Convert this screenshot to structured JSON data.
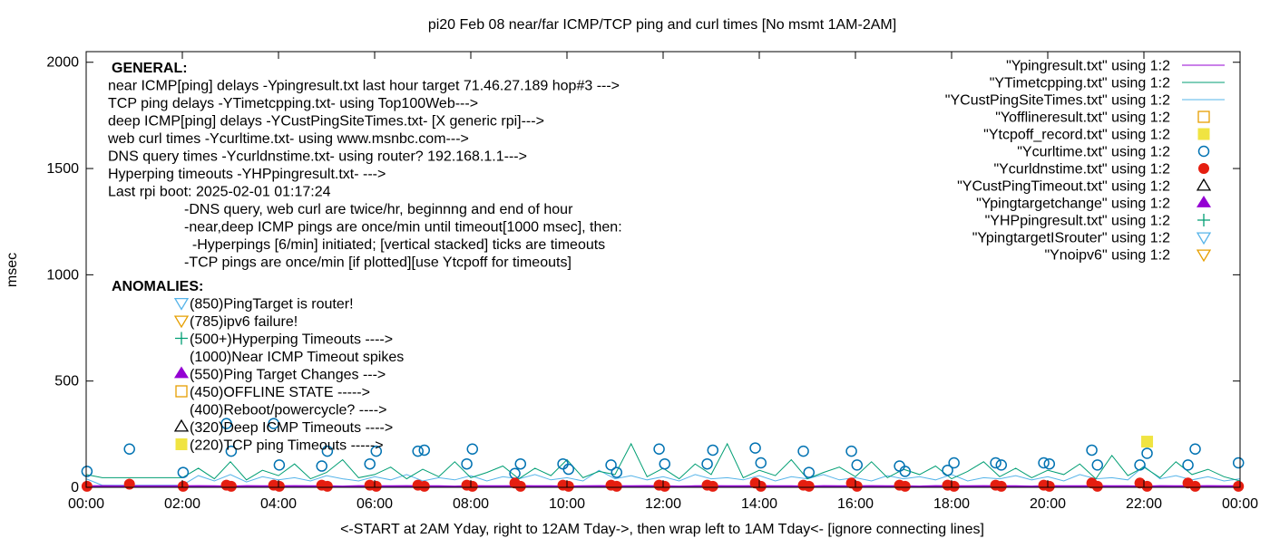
{
  "chart_data": {
    "type": "line",
    "title": "pi20 Feb 08  near/far ICMP/TCP ping and curl times [No msmt 1AM-2AM]",
    "xlabel": "<-START at 2AM Yday, right to 12AM Tday->, then wrap left to 1AM Tday<- [ignore connecting lines]",
    "ylabel": "msec",
    "xlim": [
      "00:00",
      "24:00"
    ],
    "ylim": [
      0,
      2050
    ],
    "x_ticks": [
      "00:00",
      "02:00",
      "04:00",
      "06:00",
      "08:00",
      "10:00",
      "12:00",
      "14:00",
      "16:00",
      "18:00",
      "20:00",
      "22:00",
      "00:00"
    ],
    "y_ticks": [
      0,
      500,
      1000,
      1500,
      2000
    ],
    "grid": false,
    "legend_position": "top-right",
    "colors": {
      "ypingresult": "#9400d3",
      "ytimetcpping": "#009e73",
      "ycustping": "#56b4e9",
      "yoffline": "#e69f00",
      "ytcpoff": "#f0e442",
      "ycurltime": "#0072b2",
      "ycurldns": "#e51e10",
      "ycustpingtimeout": "#000000",
      "ypingtargetchange": "#9400d3",
      "yhpping": "#009e73",
      "ypingtargetisrouter": "#56b4e9",
      "ynoipv6": "#e69f00"
    },
    "legend": [
      {
        "label": "\"Ypingresult.txt\" using 1:2",
        "kind": "line",
        "color": "#9400d3"
      },
      {
        "label": "\"YTimetcpping.txt\" using 1:2",
        "kind": "line",
        "color": "#009e73"
      },
      {
        "label": "\"YCustPingSiteTimes.txt\" using 1:2",
        "kind": "line",
        "color": "#56b4e9"
      },
      {
        "label": "\"Yofflineresult.txt\" using 1:2",
        "kind": "open-square",
        "color": "#e69f00"
      },
      {
        "label": "\"Ytcpoff_record.txt\" using 1:2",
        "kind": "filled-square",
        "color": "#f0e442"
      },
      {
        "label": "\"Ycurltime.txt\" using 1:2",
        "kind": "open-circle",
        "color": "#0072b2"
      },
      {
        "label": "\"Ycurldnstime.txt\" using 1:2",
        "kind": "filled-circle",
        "color": "#e51e10"
      },
      {
        "label": "\"YCustPingTimeout.txt\" using 1:2",
        "kind": "open-triangle",
        "color": "#000000"
      },
      {
        "label": "\"Ypingtargetchange\" using 1:2",
        "kind": "filled-triangle",
        "color": "#9400d3"
      },
      {
        "label": "\"YHPpingresult.txt\" using 1:2",
        "kind": "plus",
        "color": "#009e73"
      },
      {
        "label": "\"YpingtargetISrouter\" using 1:2",
        "kind": "open-triangle-down",
        "color": "#56b4e9"
      },
      {
        "label": "\"Ynoipv6\" using 1:2",
        "kind": "open-triangle-down",
        "color": "#e69f00"
      }
    ],
    "general_heading": "GENERAL:",
    "general_lines": [
      "near ICMP[ping] delays -Ypingresult.txt last hour target 71.46.27.189 hop#3 --->",
      "TCP ping delays -YTimetcpping.txt- using Top100Web--->",
      "deep ICMP[ping] delays -YCustPingSiteTimes.txt- [X generic rpi]--->",
      "web curl times -Ycurltime.txt- using www.msnbc.com--->",
      "DNS query times -Ycurldnstime.txt- using router? 192.168.1.1--->",
      "Hyperping timeouts -YHPpingresult.txt- --->",
      "Last rpi boot: 2025-02-01 01:17:24"
    ],
    "notes": [
      "-DNS query, web curl are twice/hr, beginnng and end of hour",
      "-near,deep ICMP pings are once/min until timeout[1000 msec], then:",
      "  -Hyperpings [6/min] initiated; [vertical stacked] ticks are timeouts",
      "-TCP pings are once/min [if plotted][use Ytcpoff for timeouts]"
    ],
    "anomalies_heading": "ANOMALIES:",
    "anomalies": [
      {
        "text": "(850)PingTarget is router!",
        "marker": "open-triangle-down",
        "color": "#56b4e9"
      },
      {
        "text": "(785)ipv6 failure!",
        "marker": "open-triangle-down",
        "color": "#e69f00"
      },
      {
        "text": "(500+)Hyperping Timeouts ---->",
        "marker": "plus",
        "color": "#009e73"
      },
      {
        "text": "(1000)Near ICMP Timeout spikes",
        "marker": "none",
        "color": ""
      },
      {
        "text": "(550)Ping Target Changes --->",
        "marker": "filled-triangle",
        "color": "#9400d3"
      },
      {
        "text": "(450)OFFLINE STATE ----->",
        "marker": "open-square",
        "color": "#e69f00"
      },
      {
        "text": "(400)Reboot/powercycle? ---->",
        "marker": "none",
        "color": ""
      },
      {
        "text": "(320)Deep ICMP Timeouts ---->",
        "marker": "open-triangle",
        "color": "#000000"
      },
      {
        "text": "(220)TCP ping Timeouts ----->",
        "marker": "filled-square",
        "color": "#f0e442"
      }
    ],
    "line_x": [
      "00:00",
      "00:20",
      "00:40",
      "01:00",
      "01:20",
      "01:40",
      "02:00",
      "02:20",
      "02:40",
      "03:00",
      "03:20",
      "03:40",
      "04:00",
      "04:20",
      "04:40",
      "05:00",
      "05:20",
      "05:40",
      "06:00",
      "06:20",
      "06:40",
      "07:00",
      "07:20",
      "07:40",
      "08:00",
      "08:20",
      "08:40",
      "09:00",
      "09:20",
      "09:40",
      "10:00",
      "10:20",
      "10:40",
      "11:00",
      "11:20",
      "11:40",
      "12:00",
      "12:20",
      "12:40",
      "13:00",
      "13:20",
      "13:40",
      "14:00",
      "14:20",
      "14:40",
      "15:00",
      "15:20",
      "15:40",
      "16:00",
      "16:20",
      "16:40",
      "17:00",
      "17:20",
      "17:40",
      "18:00",
      "18:20",
      "18:40",
      "19:00",
      "19:20",
      "19:40",
      "20:00",
      "20:20",
      "20:40",
      "21:00",
      "21:20",
      "21:40",
      "22:00",
      "22:20",
      "22:40",
      "23:00",
      "23:20",
      "23:40",
      "24:00"
    ],
    "series": [
      {
        "key": "ypingresult",
        "values": [
          5,
          6,
          5,
          5,
          5,
          5,
          5,
          6,
          5,
          4,
          6,
          5,
          5,
          6,
          5,
          5,
          4,
          6,
          5,
          5,
          6,
          5,
          5,
          4,
          6,
          5,
          5,
          6,
          5,
          5,
          4,
          5,
          6,
          5,
          5,
          6,
          5,
          4,
          5,
          6,
          5,
          5,
          6,
          5,
          5,
          4,
          6,
          5,
          5,
          6,
          5,
          5,
          4,
          6,
          5,
          5,
          6,
          5,
          5,
          4,
          6,
          5,
          5,
          6,
          5,
          5,
          4,
          6,
          5,
          5,
          6,
          5,
          5
        ]
      },
      {
        "key": "ytimetcpping",
        "values": [
          60,
          45,
          45,
          45,
          45,
          45,
          45,
          90,
          40,
          120,
          35,
          80,
          55,
          110,
          40,
          70,
          130,
          45,
          60,
          95,
          40,
          85,
          50,
          120,
          45,
          70,
          100,
          40,
          90,
          55,
          130,
          45,
          75,
          60,
          205,
          50,
          90,
          40,
          110,
          60,
          205,
          45,
          80,
          55,
          130,
          40,
          70,
          95,
          50,
          120,
          45,
          85,
          60,
          100,
          40,
          75,
          120,
          50,
          90,
          45,
          80,
          60,
          110,
          40,
          150,
          55,
          95,
          45,
          120,
          60,
          85,
          50,
          30
        ]
      },
      {
        "key": "ycustping",
        "values": [
          40,
          10,
          10,
          10,
          10,
          10,
          10,
          55,
          30,
          60,
          25,
          50,
          35,
          45,
          30,
          55,
          40,
          30,
          50,
          35,
          60,
          30,
          45,
          35,
          55,
          30,
          50,
          40,
          60,
          35,
          45,
          30,
          80,
          40,
          55,
          35,
          50,
          30,
          60,
          40,
          45,
          35,
          55,
          30,
          50,
          40,
          60,
          35,
          45,
          30,
          55,
          40,
          50,
          35,
          60,
          30,
          45,
          40,
          55,
          35,
          50,
          30,
          60,
          40,
          45,
          35,
          100,
          40,
          55,
          35,
          50,
          30,
          40
        ]
      }
    ],
    "curl_points": [
      [
        "00:01",
        75
      ],
      [
        "00:54",
        180
      ],
      [
        "02:01",
        70
      ],
      [
        "02:55",
        300
      ],
      [
        "03:01",
        170
      ],
      [
        "03:54",
        300
      ],
      [
        "04:01",
        105
      ],
      [
        "04:54",
        100
      ],
      [
        "05:01",
        170
      ],
      [
        "05:54",
        110
      ],
      [
        "06:02",
        170
      ],
      [
        "06:54",
        170
      ],
      [
        "07:02",
        175
      ],
      [
        "07:55",
        110
      ],
      [
        "08:02",
        180
      ],
      [
        "08:55",
        65
      ],
      [
        "09:02",
        110
      ],
      [
        "09:55",
        110
      ],
      [
        "10:02",
        85
      ],
      [
        "10:55",
        105
      ],
      [
        "11:02",
        70
      ],
      [
        "11:55",
        180
      ],
      [
        "12:02",
        110
      ],
      [
        "12:55",
        110
      ],
      [
        "13:02",
        175
      ],
      [
        "13:55",
        185
      ],
      [
        "14:02",
        115
      ],
      [
        "14:55",
        170
      ],
      [
        "15:02",
        70
      ],
      [
        "15:55",
        170
      ],
      [
        "16:02",
        105
      ],
      [
        "16:55",
        100
      ],
      [
        "17:02",
        75
      ],
      [
        "17:55",
        80
      ],
      [
        "18:03",
        115
      ],
      [
        "18:55",
        115
      ],
      [
        "19:02",
        105
      ],
      [
        "19:55",
        115
      ],
      [
        "20:02",
        110
      ],
      [
        "20:55",
        175
      ],
      [
        "21:02",
        105
      ],
      [
        "21:55",
        105
      ],
      [
        "22:04",
        160
      ],
      [
        "22:55",
        105
      ],
      [
        "23:04",
        180
      ],
      [
        "23:58",
        115
      ]
    ],
    "dns_points": [
      [
        "00:01",
        5
      ],
      [
        "00:54",
        15
      ],
      [
        "02:01",
        5
      ],
      [
        "02:55",
        10
      ],
      [
        "03:01",
        5
      ],
      [
        "03:54",
        10
      ],
      [
        "04:01",
        5
      ],
      [
        "04:54",
        10
      ],
      [
        "05:01",
        5
      ],
      [
        "05:54",
        10
      ],
      [
        "06:02",
        5
      ],
      [
        "06:54",
        10
      ],
      [
        "07:02",
        5
      ],
      [
        "07:55",
        10
      ],
      [
        "08:02",
        5
      ],
      [
        "08:55",
        20
      ],
      [
        "09:02",
        5
      ],
      [
        "09:55",
        10
      ],
      [
        "10:02",
        5
      ],
      [
        "10:55",
        10
      ],
      [
        "11:02",
        5
      ],
      [
        "11:55",
        10
      ],
      [
        "12:02",
        5
      ],
      [
        "12:55",
        10
      ],
      [
        "13:02",
        5
      ],
      [
        "13:55",
        20
      ],
      [
        "14:02",
        5
      ],
      [
        "14:55",
        10
      ],
      [
        "15:02",
        5
      ],
      [
        "15:55",
        20
      ],
      [
        "16:02",
        5
      ],
      [
        "16:55",
        10
      ],
      [
        "17:02",
        5
      ],
      [
        "17:55",
        10
      ],
      [
        "18:03",
        5
      ],
      [
        "18:55",
        10
      ],
      [
        "19:02",
        5
      ],
      [
        "19:55",
        10
      ],
      [
        "20:02",
        5
      ],
      [
        "20:55",
        20
      ],
      [
        "21:02",
        5
      ],
      [
        "21:55",
        20
      ],
      [
        "22:04",
        5
      ],
      [
        "22:55",
        20
      ],
      [
        "23:04",
        5
      ],
      [
        "23:58",
        5
      ]
    ],
    "tcpoff_points": [
      [
        "22:04",
        215
      ]
    ]
  }
}
